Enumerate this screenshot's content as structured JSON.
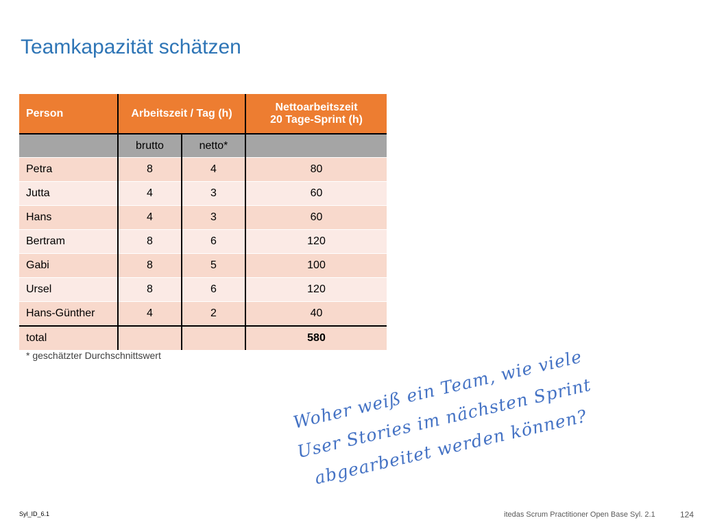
{
  "slide": {
    "title": "Teamkapazität schätzen",
    "footnote": "* geschätzter Durchschnittswert",
    "quote_lines": [
      "Woher weiß ein Team, wie viele",
      "User Stories im nächsten Sprint",
      "abgearbeitet werden können?"
    ],
    "footer_id": "Syl_ID_6.1",
    "footer_course": "itedas Scrum Practitioner Open Base Syl. 2.1",
    "page_number": "124"
  },
  "table": {
    "headers": {
      "person": "Person",
      "arbeitszeit": "Arbeitszeit / Tag (h)",
      "netto_line1": "Nettoarbeitszeit",
      "netto_line2": "20 Tage-Sprint (h)"
    },
    "subheaders": {
      "brutto": "brutto",
      "netto": "netto*"
    },
    "rows": [
      {
        "name": "Petra",
        "brutto": "8",
        "netto": "4",
        "sprint": "80"
      },
      {
        "name": "Jutta",
        "brutto": "4",
        "netto": "3",
        "sprint": "60"
      },
      {
        "name": "Hans",
        "brutto": "4",
        "netto": "3",
        "sprint": "60"
      },
      {
        "name": "Bertram",
        "brutto": "8",
        "netto": "6",
        "sprint": "120"
      },
      {
        "name": "Gabi",
        "brutto": "8",
        "netto": "5",
        "sprint": "100"
      },
      {
        "name": "Ursel",
        "brutto": "8",
        "netto": "6",
        "sprint": "120"
      },
      {
        "name": "Hans-Günther",
        "brutto": "4",
        "netto": "2",
        "sprint": "40"
      }
    ],
    "total": {
      "label": "total",
      "value": "580"
    }
  }
}
